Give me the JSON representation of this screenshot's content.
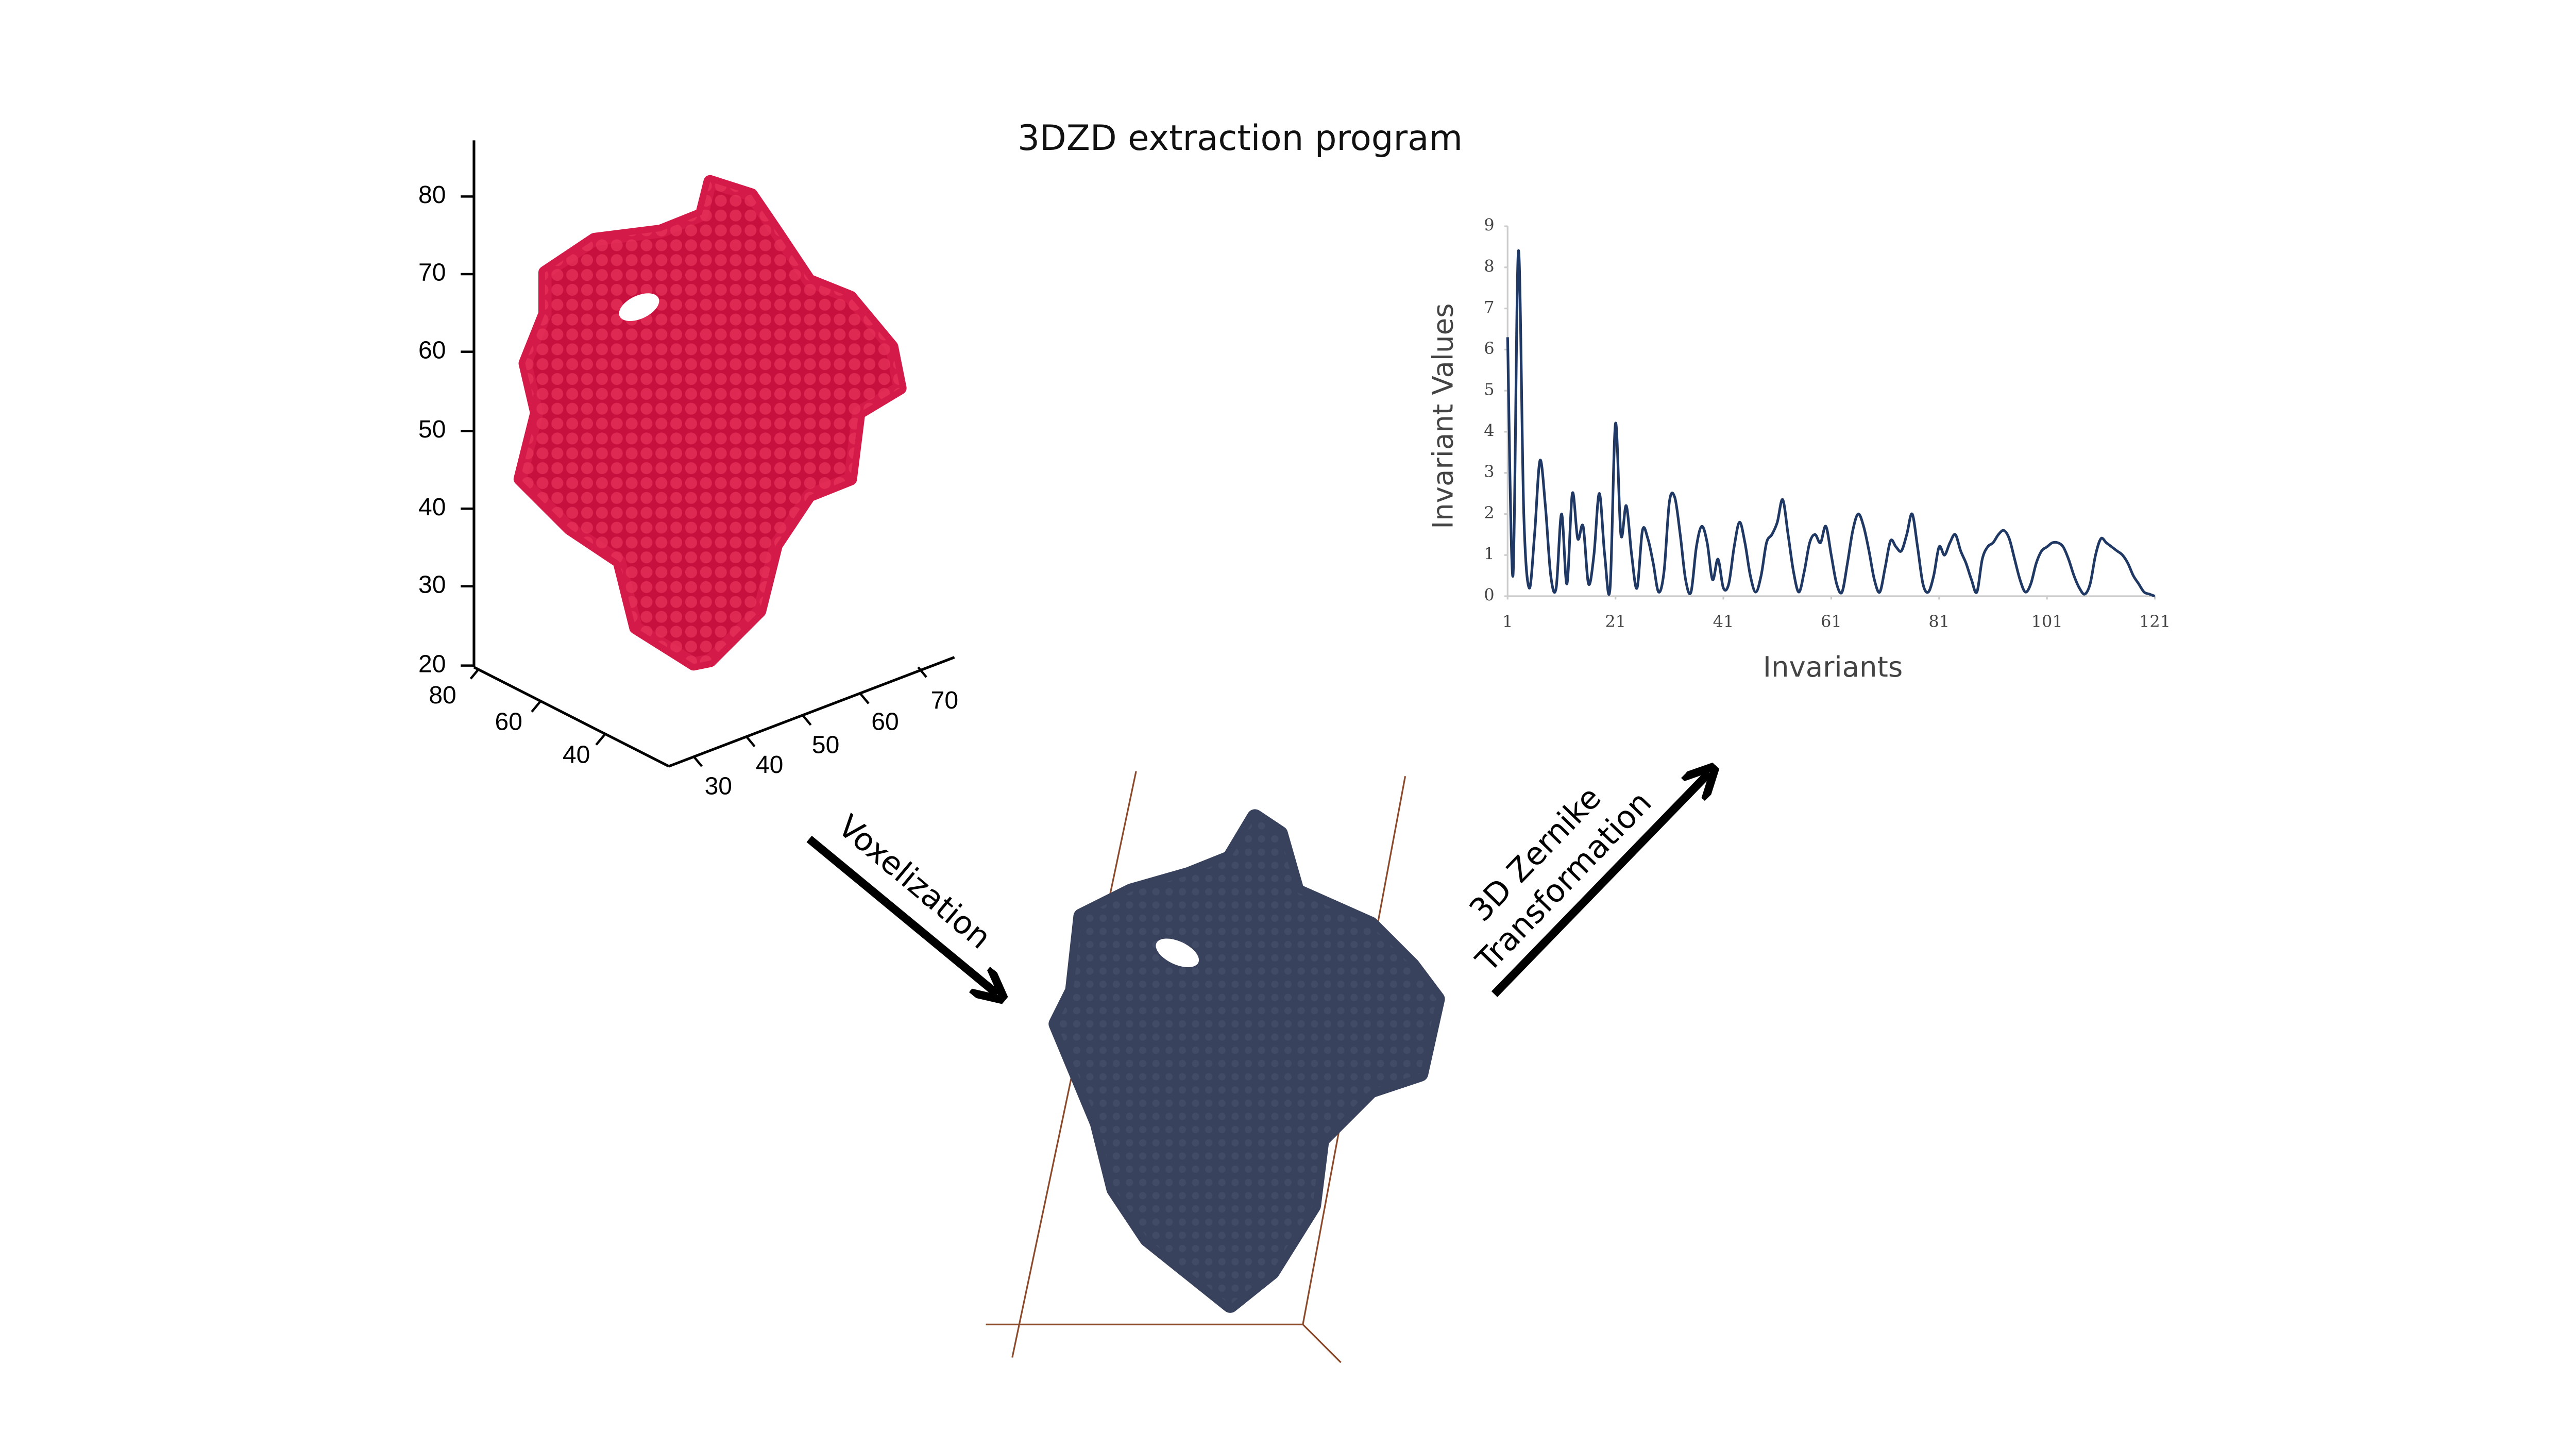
{
  "title": "3DZD extraction program",
  "surface_plot": {
    "z_ticks": [
      80,
      70,
      60,
      50,
      40,
      30,
      20
    ],
    "x_ticks": [
      80,
      60,
      40
    ],
    "y_ticks": [
      30,
      40,
      50,
      60,
      70
    ]
  },
  "arrows": {
    "voxelization": "Voxelization",
    "zernike": [
      "3D Zernike",
      "Transformation"
    ]
  },
  "chart_data": {
    "type": "line",
    "ylabel": "Invariant Values",
    "xlabel": "Invariants",
    "color": "#1f3864",
    "xlim": [
      1,
      121
    ],
    "xticks": [
      1,
      21,
      41,
      61,
      81,
      101,
      121
    ],
    "ylim": [
      0,
      9
    ],
    "yticks": [
      0,
      1,
      2,
      3,
      4,
      5,
      6,
      7,
      8,
      9
    ],
    "x": [
      1,
      2,
      3,
      4,
      5,
      6,
      7,
      8,
      9,
      10,
      11,
      12,
      13,
      14,
      15,
      16,
      17,
      18,
      19,
      20,
      21,
      22,
      23,
      24,
      25,
      26,
      27,
      28,
      29,
      30,
      31,
      32,
      33,
      34,
      35,
      36,
      37,
      38,
      39,
      40,
      41,
      42,
      43,
      44,
      45,
      46,
      47,
      48,
      49,
      50,
      51,
      52,
      53,
      54,
      55,
      56,
      57,
      58,
      59,
      60,
      61,
      62,
      63,
      64,
      65,
      66,
      67,
      68,
      69,
      70,
      71,
      72,
      73,
      74,
      75,
      76,
      77,
      78,
      79,
      80,
      81,
      82,
      83,
      84,
      85,
      86,
      87,
      88,
      89,
      90,
      91,
      92,
      93,
      94,
      95,
      96,
      97,
      98,
      99,
      100,
      101,
      102,
      103,
      104,
      105,
      106,
      107,
      108,
      109,
      110,
      111,
      112,
      113,
      114,
      115,
      116,
      117,
      118,
      119,
      120,
      121
    ],
    "values": [
      6.3,
      0.5,
      8.4,
      2.0,
      0.2,
      1.5,
      3.3,
      2.2,
      0.5,
      0.2,
      2.0,
      0.3,
      2.5,
      1.4,
      1.7,
      0.3,
      1.0,
      2.5,
      1.0,
      0.2,
      4.2,
      1.5,
      2.2,
      1.0,
      0.2,
      1.6,
      1.4,
      0.8,
      0.1,
      0.6,
      2.3,
      2.4,
      1.5,
      0.4,
      0.1,
      1.2,
      1.7,
      1.3,
      0.4,
      0.9,
      0.2,
      0.3,
      1.2,
      1.8,
      1.3,
      0.5,
      0.1,
      0.5,
      1.3,
      1.5,
      1.8,
      2.35,
      1.5,
      0.6,
      0.1,
      0.6,
      1.3,
      1.5,
      1.3,
      1.7,
      1.0,
      0.3,
      0.1,
      0.8,
      1.6,
      2.0,
      1.7,
      1.1,
      0.4,
      0.1,
      0.7,
      1.35,
      1.2,
      1.1,
      1.5,
      2.0,
      1.2,
      0.3,
      0.1,
      0.5,
      1.2,
      1.0,
      1.3,
      1.5,
      1.1,
      0.8,
      0.4,
      0.1,
      0.9,
      1.2,
      1.3,
      1.5,
      1.6,
      1.4,
      0.9,
      0.4,
      0.1,
      0.3,
      0.8,
      1.1,
      1.2,
      1.3,
      1.3,
      1.2,
      0.9,
      0.5,
      0.2,
      0.05,
      0.3,
      1.0,
      1.4,
      1.3,
      1.2,
      1.1,
      1.0,
      0.8,
      0.5,
      0.3,
      0.1,
      0.05,
      0
    ]
  }
}
